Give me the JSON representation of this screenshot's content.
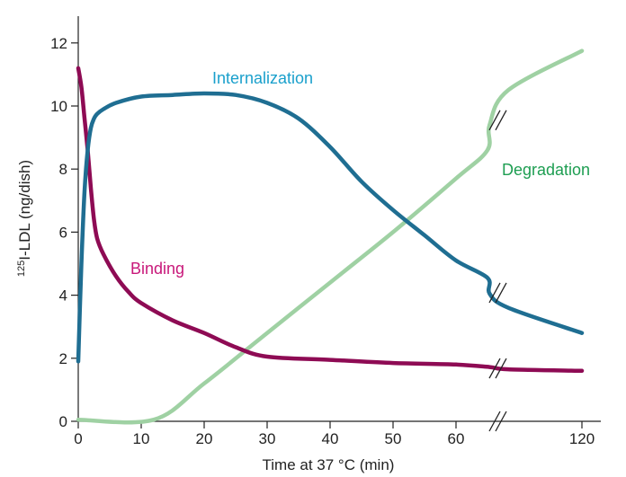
{
  "chart_data": {
    "type": "line",
    "xlabel": "Time at 37 °C (min)",
    "ylabel_sup": "125",
    "ylabel_main": "I-LDL (ng/dish)",
    "x_ticks": [
      0,
      10,
      20,
      30,
      40,
      50,
      60,
      120
    ],
    "x_tick_labels": [
      "0",
      "10",
      "20",
      "30",
      "40",
      "50",
      "60",
      "120"
    ],
    "x_axis_break": [
      65,
      115
    ],
    "y_ticks": [
      0,
      2,
      4,
      6,
      8,
      10,
      12
    ],
    "y_tick_labels": [
      "0",
      "2",
      "4",
      "6",
      "8",
      "10",
      "12"
    ],
    "xlim": [
      0,
      120
    ],
    "ylim": [
      0,
      12.8
    ],
    "grid": false,
    "series": [
      {
        "name": "Internalization",
        "color": "#1f6e92",
        "label_color": "#1aa0cc",
        "points": [
          [
            0,
            1.9
          ],
          [
            0.5,
            5.0
          ],
          [
            1,
            7.3
          ],
          [
            1.5,
            8.6
          ],
          [
            2,
            9.3
          ],
          [
            2.5,
            9.6
          ],
          [
            3,
            9.75
          ],
          [
            4,
            9.9
          ],
          [
            6,
            10.1
          ],
          [
            10,
            10.3
          ],
          [
            15,
            10.35
          ],
          [
            20,
            10.4
          ],
          [
            25,
            10.35
          ],
          [
            30,
            10.1
          ],
          [
            35,
            9.6
          ],
          [
            40,
            8.7
          ],
          [
            45,
            7.6
          ],
          [
            50,
            6.7
          ],
          [
            55,
            5.9
          ],
          [
            60,
            5.1
          ],
          [
            65,
            4.55
          ],
          [
            70,
            4.05
          ],
          [
            115,
            3.6
          ],
          [
            120,
            2.8
          ]
        ]
      },
      {
        "name": "Binding",
        "color": "#8e0b54",
        "label_color": "#c8187a",
        "points": [
          [
            0,
            11.2
          ],
          [
            0.5,
            10.6
          ],
          [
            1,
            9.6
          ],
          [
            1.5,
            8.6
          ],
          [
            2,
            7.4
          ],
          [
            2.5,
            6.4
          ],
          [
            3,
            5.8
          ],
          [
            4,
            5.3
          ],
          [
            6,
            4.6
          ],
          [
            8,
            4.1
          ],
          [
            10,
            3.75
          ],
          [
            15,
            3.2
          ],
          [
            20,
            2.8
          ],
          [
            25,
            2.35
          ],
          [
            30,
            2.05
          ],
          [
            40,
            1.95
          ],
          [
            50,
            1.85
          ],
          [
            60,
            1.8
          ],
          [
            70,
            1.72
          ],
          [
            115,
            1.65
          ],
          [
            120,
            1.6
          ]
        ]
      },
      {
        "name": "Degradation",
        "color": "#9fd1a3",
        "label_color": "#1e9e52",
        "points": [
          [
            0,
            0.05
          ],
          [
            12,
            0.05
          ],
          [
            20,
            1.2
          ],
          [
            30,
            2.8
          ],
          [
            40,
            4.4
          ],
          [
            50,
            6.0
          ],
          [
            60,
            7.7
          ],
          [
            65,
            8.6
          ],
          [
            70,
            9.4
          ],
          [
            115,
            10.5
          ],
          [
            120,
            11.75
          ]
        ]
      }
    ]
  }
}
